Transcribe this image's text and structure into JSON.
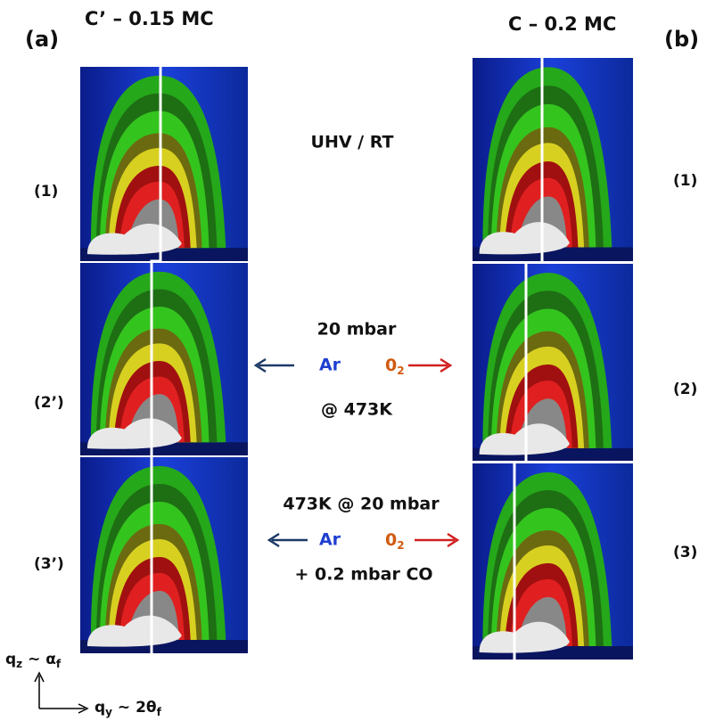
{
  "panel_a": {
    "label": "(a)",
    "title": "C’ – 0.15 MC",
    "rows": [
      "(1)",
      "(2’)",
      "(3’)"
    ]
  },
  "panel_b": {
    "label": "(b)",
    "title": "C – 0.2 MC",
    "rows": [
      "(1)",
      "(2)",
      "(3)"
    ]
  },
  "conditions": {
    "first": "UHV / RT",
    "second": {
      "pressure": "20 mbar",
      "gas_1": "Ar",
      "gas_2": [
        "0",
        "2"
      ],
      "temperature": "@ 473K"
    },
    "third": {
      "pressure": "473K @ 20 mbar",
      "gas_1": "Ar",
      "gas_2": [
        "0",
        "2"
      ],
      "extra": "+ 0.2 mbar CO"
    }
  },
  "axes": {
    "vertical": [
      "q",
      "z",
      " ~ α",
      "f"
    ],
    "horizontal": [
      "q",
      "y",
      " ~ 2θ",
      "f"
    ]
  }
}
